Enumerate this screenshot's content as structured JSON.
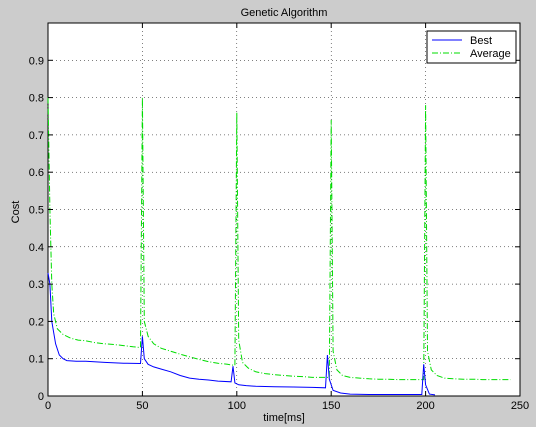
{
  "chart_data": {
    "type": "line",
    "title": "Genetic Algorithm",
    "xlabel": "time[ms]",
    "ylabel": "Cost",
    "xlim": [
      0,
      250
    ],
    "ylim": [
      0,
      1
    ],
    "xticks": [
      0,
      50,
      100,
      150,
      200,
      250
    ],
    "yticks": [
      0,
      0.1,
      0.2,
      0.3,
      0.4,
      0.5,
      0.6,
      0.7,
      0.8,
      0.9
    ],
    "grid": true,
    "legend_position": "top-right",
    "series": [
      {
        "name": "Best",
        "color": "#0000ff",
        "style": "solid",
        "points": [
          [
            0,
            0.33
          ],
          [
            1,
            0.3
          ],
          [
            2,
            0.2
          ],
          [
            4,
            0.14
          ],
          [
            6,
            0.11
          ],
          [
            8,
            0.1
          ],
          [
            10,
            0.095
          ],
          [
            15,
            0.093
          ],
          [
            20,
            0.093
          ],
          [
            30,
            0.09
          ],
          [
            40,
            0.088
          ],
          [
            49,
            0.087
          ],
          [
            50,
            0.16
          ],
          [
            51,
            0.1
          ],
          [
            53,
            0.085
          ],
          [
            56,
            0.078
          ],
          [
            60,
            0.072
          ],
          [
            65,
            0.065
          ],
          [
            70,
            0.055
          ],
          [
            75,
            0.048
          ],
          [
            80,
            0.045
          ],
          [
            85,
            0.043
          ],
          [
            90,
            0.04
          ],
          [
            97,
            0.038
          ],
          [
            98,
            0.08
          ],
          [
            99,
            0.035
          ],
          [
            101,
            0.03
          ],
          [
            105,
            0.028
          ],
          [
            110,
            0.026
          ],
          [
            120,
            0.025
          ],
          [
            130,
            0.024
          ],
          [
            140,
            0.023
          ],
          [
            147,
            0.022
          ],
          [
            148,
            0.11
          ],
          [
            149,
            0.045
          ],
          [
            151,
            0.015
          ],
          [
            155,
            0.008
          ],
          [
            160,
            0.005
          ],
          [
            170,
            0.004
          ],
          [
            180,
            0.004
          ],
          [
            190,
            0.004
          ],
          [
            198,
            0.004
          ],
          [
            199,
            0.085
          ],
          [
            200,
            0.03
          ],
          [
            202,
            0.005
          ],
          [
            205,
            0.003
          ]
        ]
      },
      {
        "name": "Average",
        "color": "#00dd00",
        "style": "dash-dot",
        "points": [
          [
            0,
            0.8
          ],
          [
            1,
            0.5
          ],
          [
            2,
            0.3
          ],
          [
            3,
            0.22
          ],
          [
            5,
            0.18
          ],
          [
            8,
            0.165
          ],
          [
            12,
            0.155
          ],
          [
            16,
            0.15
          ],
          [
            20,
            0.148
          ],
          [
            25,
            0.143
          ],
          [
            30,
            0.14
          ],
          [
            35,
            0.138
          ],
          [
            40,
            0.135
          ],
          [
            45,
            0.132
          ],
          [
            49,
            0.13
          ],
          [
            50,
            0.8
          ],
          [
            51,
            0.2
          ],
          [
            53,
            0.16
          ],
          [
            56,
            0.14
          ],
          [
            60,
            0.128
          ],
          [
            65,
            0.12
          ],
          [
            70,
            0.112
          ],
          [
            75,
            0.105
          ],
          [
            80,
            0.098
          ],
          [
            85,
            0.092
          ],
          [
            90,
            0.088
          ],
          [
            95,
            0.085
          ],
          [
            99,
            0.082
          ],
          [
            100,
            0.76
          ],
          [
            101,
            0.15
          ],
          [
            103,
            0.09
          ],
          [
            106,
            0.075
          ],
          [
            110,
            0.065
          ],
          [
            115,
            0.06
          ],
          [
            120,
            0.057
          ],
          [
            125,
            0.055
          ],
          [
            130,
            0.053
          ],
          [
            135,
            0.052
          ],
          [
            140,
            0.05
          ],
          [
            145,
            0.05
          ],
          [
            149,
            0.05
          ],
          [
            150,
            0.74
          ],
          [
            151,
            0.12
          ],
          [
            153,
            0.07
          ],
          [
            156,
            0.055
          ],
          [
            160,
            0.05
          ],
          [
            165,
            0.048
          ],
          [
            170,
            0.046
          ],
          [
            175,
            0.045
          ],
          [
            180,
            0.045
          ],
          [
            185,
            0.044
          ],
          [
            190,
            0.044
          ],
          [
            195,
            0.044
          ],
          [
            199,
            0.044
          ],
          [
            200,
            0.78
          ],
          [
            201,
            0.12
          ],
          [
            203,
            0.07
          ],
          [
            206,
            0.055
          ],
          [
            210,
            0.048
          ],
          [
            215,
            0.046
          ],
          [
            220,
            0.045
          ],
          [
            225,
            0.045
          ],
          [
            230,
            0.044
          ],
          [
            235,
            0.044
          ],
          [
            240,
            0.044
          ],
          [
            245,
            0.044
          ]
        ]
      }
    ]
  }
}
